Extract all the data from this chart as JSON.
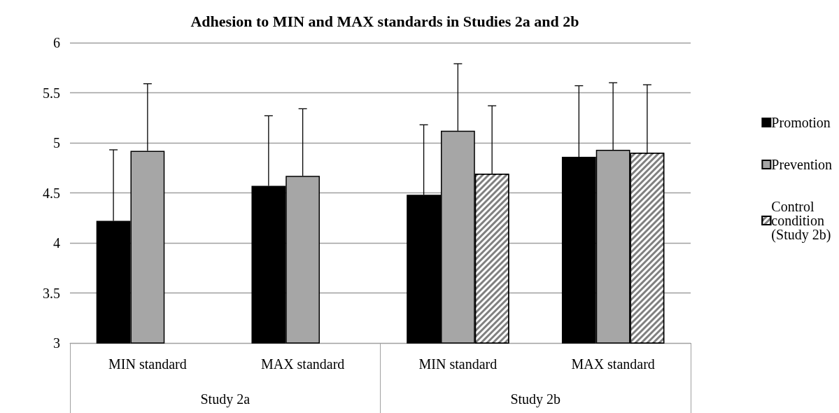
{
  "chart_data": {
    "type": "bar",
    "title": "Adhesion to MIN and MAX standards in Studies 2a and 2b",
    "categories": [
      "MIN standard",
      "MAX standard",
      "MIN standard",
      "MAX standard"
    ],
    "annotations": [
      "Study 2a",
      "Study 2b"
    ],
    "series": [
      {
        "name": "Promotion",
        "color": "#000000",
        "values": [
          4.22,
          4.57,
          4.48,
          4.86
        ],
        "errors": [
          [
            4.22,
            4.93
          ],
          [
            4.57,
            5.27
          ],
          [
            4.48,
            5.18
          ],
          [
            4.86,
            5.57
          ]
        ]
      },
      {
        "name": "Prevention",
        "color": "#a6a6a6",
        "values": [
          4.92,
          4.67,
          5.12,
          4.93
        ],
        "errors": [
          [
            4.92,
            5.59
          ],
          [
            4.67,
            5.34
          ],
          [
            5.12,
            5.79
          ],
          [
            4.93,
            5.6
          ]
        ]
      },
      {
        "name": "Control condition (Study 2b)",
        "color": "#808080",
        "values": [
          null,
          null,
          4.69,
          4.9
        ],
        "errors": [
          null,
          null,
          [
            4.69,
            5.37
          ],
          [
            4.9,
            5.58
          ]
        ]
      }
    ],
    "ylim": [
      3,
      6
    ],
    "yticks": [
      3,
      3.5,
      4,
      4.5,
      5,
      5.5,
      6
    ],
    "grid": "y",
    "legend": "right"
  }
}
